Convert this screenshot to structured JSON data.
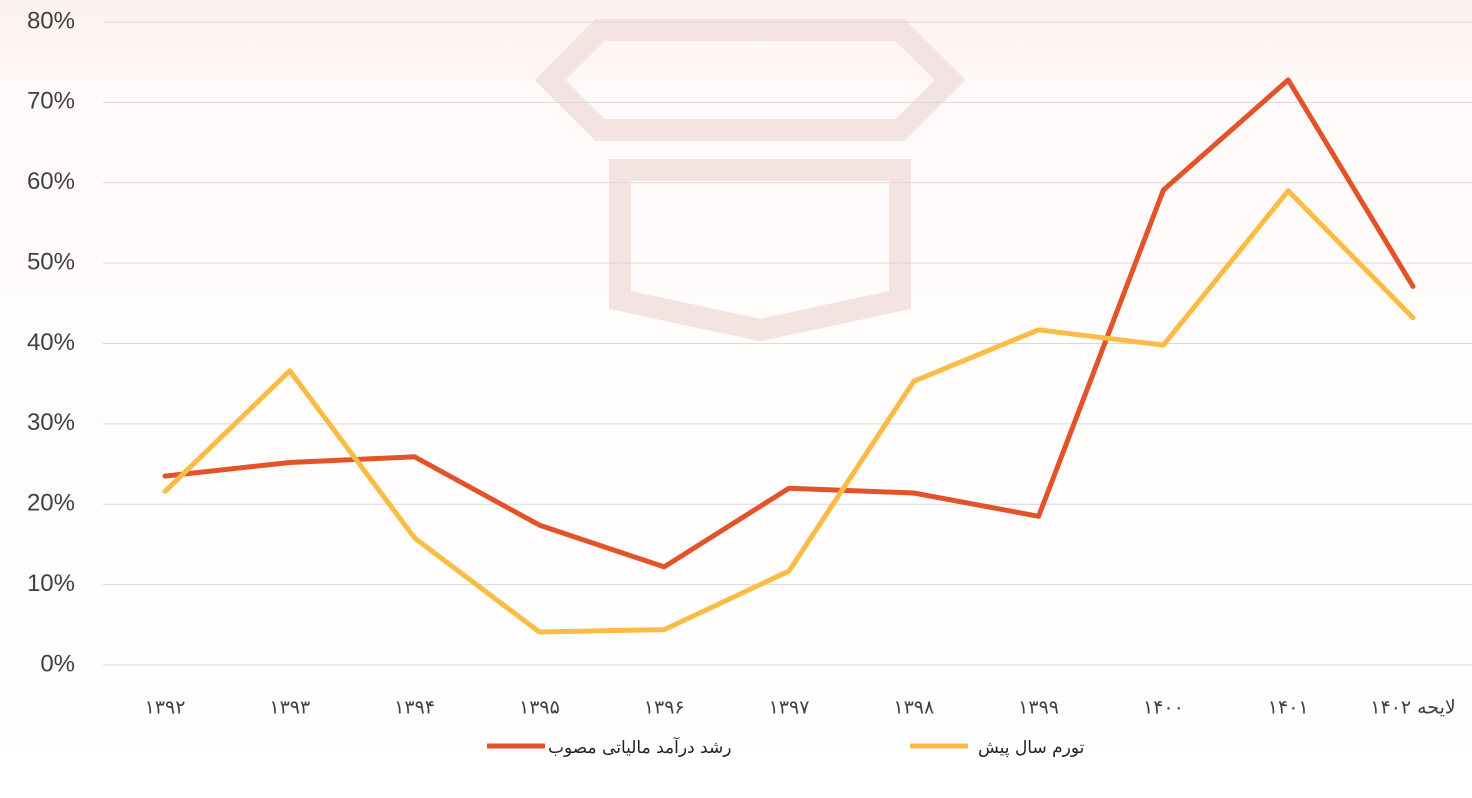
{
  "chart_data": {
    "type": "line",
    "categories": [
      "۱۳۹۲",
      "۱۳۹۳",
      "۱۳۹۴",
      "۱۳۹۵",
      "۱۳۹۶",
      "۱۳۹۷",
      "۱۳۹۸",
      "۱۳۹۹",
      "۱۴۰۰",
      "۱۴۰۱",
      "لایحه ۱۴۰۲"
    ],
    "series": [
      {
        "name": "رشد درآمد مالیاتی مصوب",
        "color": "#e2532a",
        "values": [
          23.5,
          25.2,
          25.9,
          17.4,
          12.2,
          22.0,
          21.4,
          18.5,
          59.1,
          72.8,
          47.1
        ]
      },
      {
        "name": "تورم سال پیش",
        "color": "#fbbc45",
        "values": [
          21.6,
          36.6,
          15.8,
          4.1,
          4.4,
          11.7,
          35.3,
          41.7,
          39.8,
          59.0,
          43.2
        ]
      }
    ],
    "ylim": [
      0,
      80
    ],
    "yticks": [
      {
        "value": 0,
        "label": "0%"
      },
      {
        "value": 10,
        "label": "10%"
      },
      {
        "value": 20,
        "label": "20%"
      },
      {
        "value": 30,
        "label": "30%"
      },
      {
        "value": 40,
        "label": "40%"
      },
      {
        "value": 50,
        "label": "50%"
      },
      {
        "value": 60,
        "label": "60%"
      },
      {
        "value": 70,
        "label": "70%"
      },
      {
        "value": 80,
        "label": "80%"
      }
    ],
    "grid": true,
    "legend": "bottom"
  }
}
